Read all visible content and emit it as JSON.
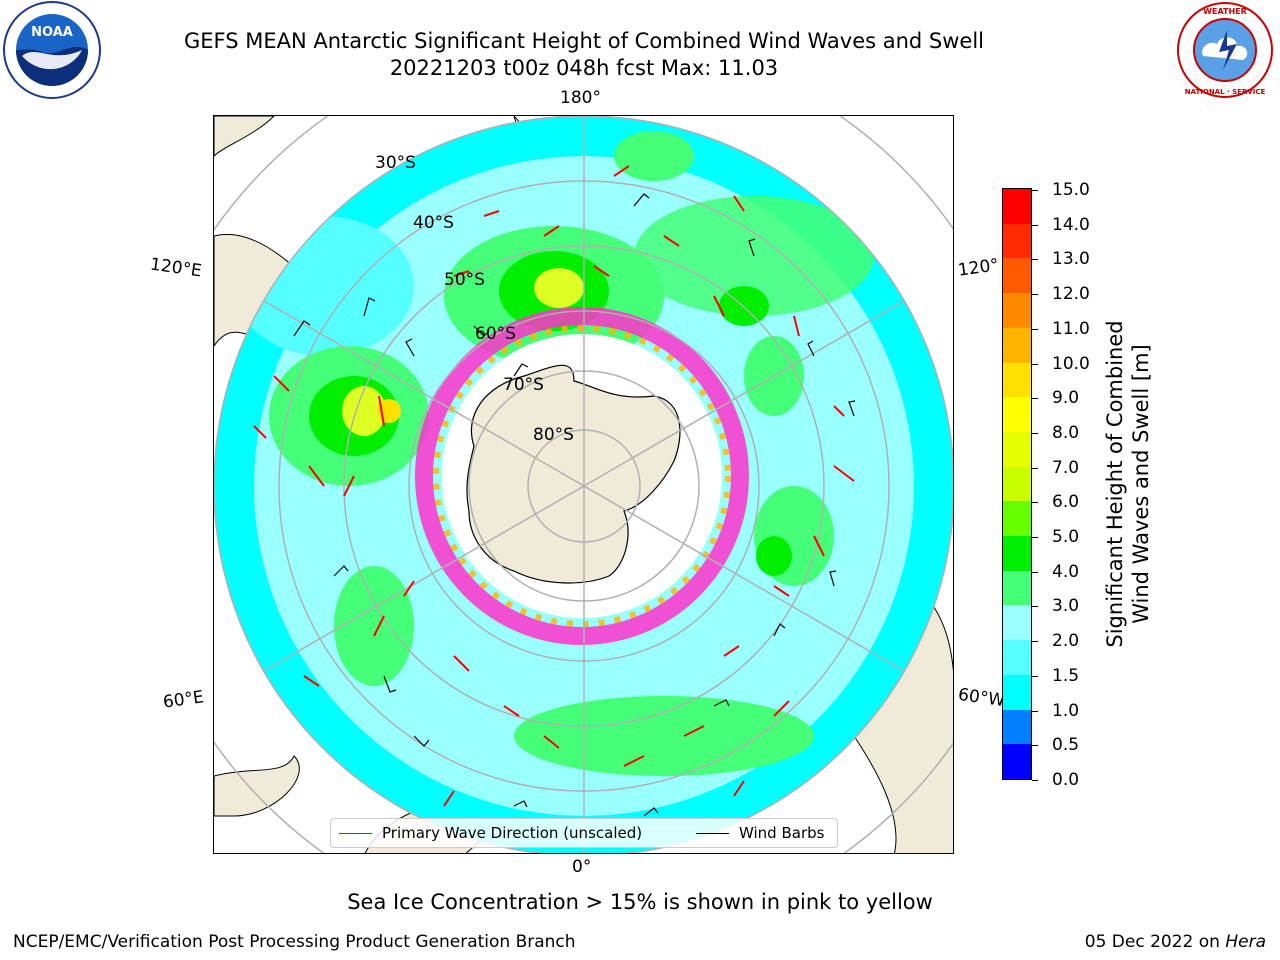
{
  "header": {
    "title_line1": "GEFS MEAN Antarctic Significant Height of Combined Wind Waves and Swell",
    "title_line2": "20221203 t00z 048h fcst   Max: 11.03"
  },
  "logos": {
    "left": "noaa-logo",
    "right": "national-weather-service-logo"
  },
  "map": {
    "projection": "south-polar-stereographic",
    "longitude_labels": {
      "top": "180°",
      "bottom": "0°",
      "left_upper": "120°E",
      "left_lower": "60°E",
      "right_upper": "120°",
      "right_lower": "60°W"
    },
    "latitude_labels": [
      "30°S",
      "40°S",
      "50°S",
      "60°S",
      "70°S",
      "80°S"
    ],
    "colors": {
      "land": "#efebd8",
      "ocean_low": "#00ffff",
      "ocean_mid": "#99ffff",
      "ocean_high": "#44ff77",
      "peak": "#ddff22",
      "ice": "#ff33cc",
      "wave_arrow": "#ff0000",
      "wind_barb": "#000000",
      "grid": "#b0b0b0"
    }
  },
  "legend": {
    "wave_label": "Primary Wave Direction (unscaled)",
    "wind_label": "Wind Barbs",
    "wave_color": "#ff0000",
    "wind_color": "#000000"
  },
  "colorbar": {
    "title_line1": "Significant Height of Combined",
    "title_line2": "Wind Waves and Swell [m]",
    "ticks": [
      "15.0",
      "14.0",
      "13.0",
      "12.0",
      "11.0",
      "10.0",
      "9.0",
      "8.0",
      "7.0",
      "6.0",
      "5.0",
      "4.0",
      "3.0",
      "2.0",
      "1.5",
      "1.0",
      "0.5",
      "0.0"
    ],
    "segments": [
      {
        "range": "14.0-15.0",
        "color": "#ff0000"
      },
      {
        "range": "13.0-14.0",
        "color": "#ff2a00"
      },
      {
        "range": "12.0-13.0",
        "color": "#ff5a00"
      },
      {
        "range": "11.0-12.0",
        "color": "#ff8a00"
      },
      {
        "range": "10.0-11.0",
        "color": "#ffb400"
      },
      {
        "range": "9.0-10.0",
        "color": "#ffe000"
      },
      {
        "range": "8.0-9.0",
        "color": "#ffff00"
      },
      {
        "range": "7.0-8.0",
        "color": "#e6ff00"
      },
      {
        "range": "6.0-7.0",
        "color": "#c8ff00"
      },
      {
        "range": "5.0-6.0",
        "color": "#66ff00"
      },
      {
        "range": "4.0-5.0",
        "color": "#00ee00"
      },
      {
        "range": "3.0-4.0",
        "color": "#44ff77"
      },
      {
        "range": "2.0-3.0",
        "color": "#99ffff"
      },
      {
        "range": "1.5-2.0",
        "color": "#55ffff"
      },
      {
        "range": "1.0-1.5",
        "color": "#00ffff"
      },
      {
        "range": "0.5-1.0",
        "color": "#0080ff"
      },
      {
        "range": "0.0-0.5",
        "color": "#0000ff"
      }
    ]
  },
  "caption": "Sea Ice Concentration > 15% is shown in pink to yellow",
  "footer": {
    "left": "NCEP/EMC/Verification Post Processing Product Generation Branch",
    "date": "05 Dec 2022 on ",
    "machine": "Hera"
  }
}
